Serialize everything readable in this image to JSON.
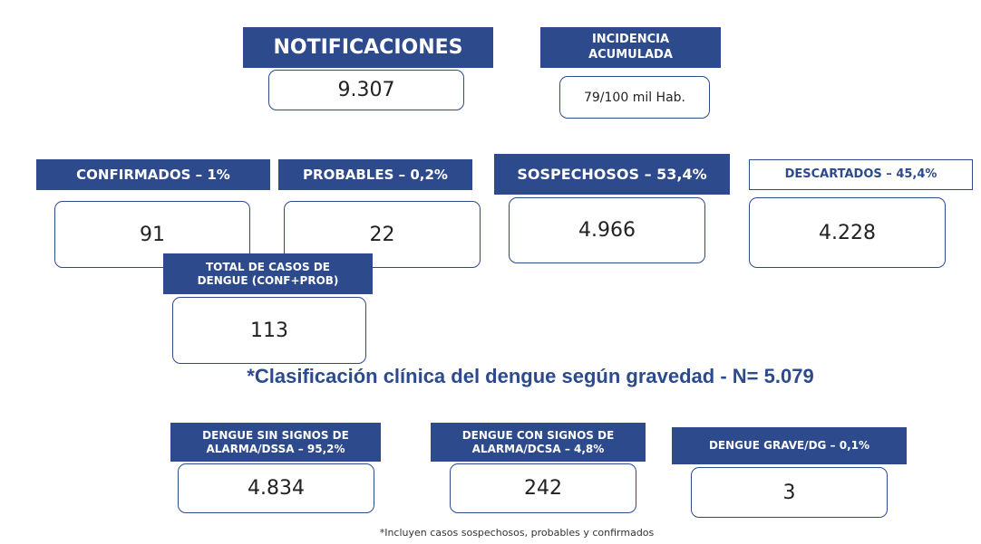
{
  "cards": [
    {
      "header": [
        "NOTIFICACIONES"
      ],
      "value": "9.307"
    },
    {
      "header": [
        "INCIDENCIA",
        "ACUMULADA"
      ],
      "value": "79/100 mil Hab."
    },
    {
      "header": [
        "CONFIRMADOS – 1%"
      ],
      "value": "91"
    },
    {
      "header": [
        "PROBABLES – 0,2%"
      ],
      "value": "22"
    },
    {
      "header": [
        "SOSPECHOSOS – 53,4%"
      ],
      "value": "4.966"
    },
    {
      "header": [
        "DESCARTADOS – 45,4%"
      ],
      "value": "4.228"
    },
    {
      "header": [
        "TOTAL DE CASOS DE",
        "DENGUE (CONF+PROB)"
      ],
      "value": "113"
    },
    {
      "header": [
        "DENGUE SIN SIGNOS DE",
        "ALARMA/DSSA – 95,2%"
      ],
      "value": "4.834"
    },
    {
      "header": [
        "DENGUE CON SIGNOS DE",
        "ALARMA/DCSA – 4,8%"
      ],
      "value": "242"
    },
    {
      "header": [
        "DENGUE GRAVE/DG – 0,1%"
      ],
      "value": "3"
    }
  ],
  "heading": "*Clasificación clínica del dengue según gravedad - N= 5.079",
  "footnote": "*Incluyen casos sospechosos, probables y confirmados"
}
